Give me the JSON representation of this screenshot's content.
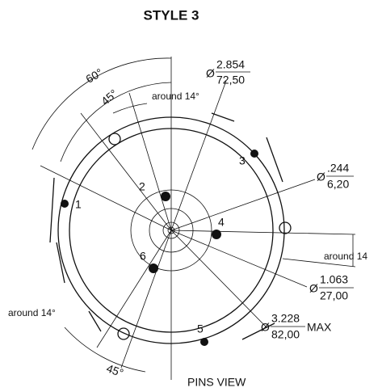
{
  "title": "STYLE 3",
  "angles": {
    "top_outer": "60°",
    "top_inner": "45°",
    "top_around": "around 14°",
    "right_around": "around 14",
    "bottom_around": "around 14°",
    "bottom": "45°"
  },
  "diameters": [
    {
      "symbol": "Ø",
      "inch": "2.854",
      "mm": "72,50"
    },
    {
      "symbol": "Ø",
      "inch": ".244",
      "mm": "6,20"
    },
    {
      "symbol": "Ø",
      "inch": "1.063",
      "mm": "27,00"
    },
    {
      "symbol": "Ø",
      "inch": "3.228",
      "mm": "82,00",
      "suffix": "MAX"
    }
  ],
  "pins": [
    "1",
    "2",
    "3",
    "4",
    "5",
    "6"
  ],
  "footer": "PINS VIEW"
}
